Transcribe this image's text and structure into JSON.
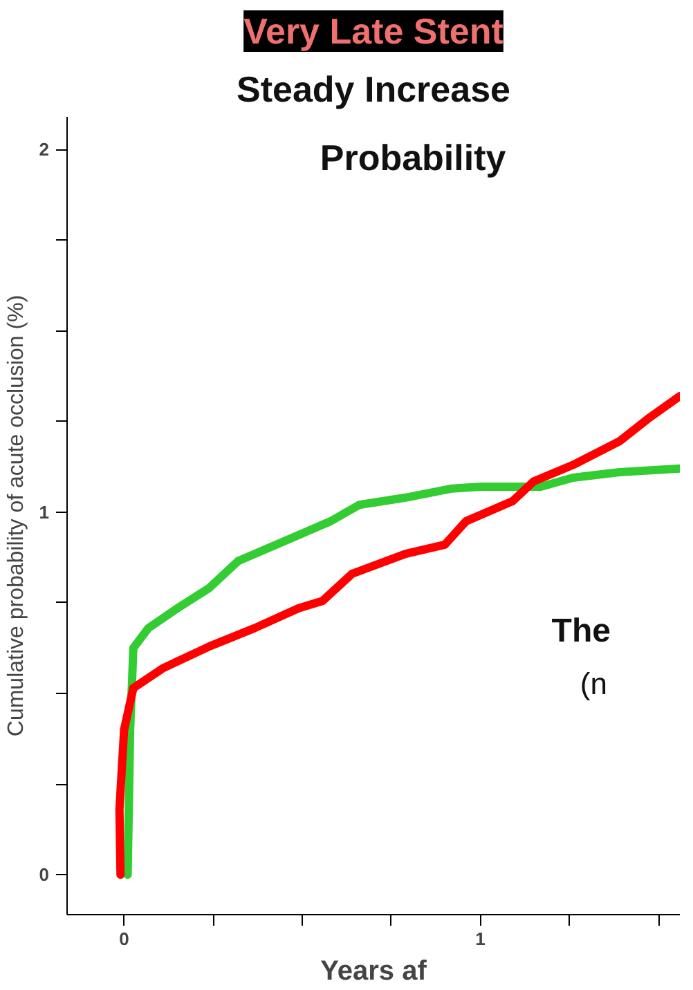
{
  "chart_data": {
    "type": "line",
    "title": "Very Late Stent",
    "subtitle": "Steady Increase",
    "annotations": [
      "Probability",
      "The",
      "(n"
    ],
    "xlabel": "Years af",
    "ylabel": "Cumulative probability of acute occlusion (%)",
    "xlim": [
      -0.16,
      1.56
    ],
    "ylim": [
      -0.11,
      2.09
    ],
    "xticks": [
      0,
      {
        "value": 0.25,
        "label": null
      },
      {
        "value": 0.5,
        "label": null
      },
      {
        "value": 0.75,
        "label": null
      },
      1,
      {
        "value": 1.25,
        "label": null
      },
      {
        "value": 1.5,
        "label": null
      }
    ],
    "yticks": [
      0,
      {
        "value": 0.25,
        "label": null
      },
      {
        "value": 0.5,
        "label": null
      },
      {
        "value": 0.75,
        "label": null
      },
      1,
      {
        "value": 1.25,
        "label": null
      },
      {
        "value": 1.5,
        "label": null
      },
      {
        "value": 1.75,
        "label": null
      },
      2
    ],
    "grid": false,
    "marker": "none",
    "line_style": "solid",
    "series": [
      {
        "color": "#33cc33",
        "x": [
          0.01,
          0.017,
          0.026,
          0.068,
          0.15,
          0.238,
          0.32,
          0.45,
          0.58,
          0.66,
          0.79,
          0.92,
          1.0,
          1.17,
          1.26,
          1.39,
          1.56
        ],
        "values": [
          0,
          0.4,
          0.625,
          0.68,
          0.735,
          0.79,
          0.865,
          0.92,
          0.975,
          1.02,
          1.04,
          1.065,
          1.07,
          1.07,
          1.095,
          1.11,
          1.12
        ]
      },
      {
        "color": "#ff0000",
        "x": [
          -0.01,
          -0.013,
          0.0,
          0.026,
          0.11,
          0.24,
          0.366,
          0.49,
          0.557,
          0.64,
          0.79,
          0.9,
          0.96,
          1.09,
          1.15,
          1.26,
          1.39,
          1.47,
          1.56
        ],
        "values": [
          0,
          0.18,
          0.4,
          0.515,
          0.57,
          0.63,
          0.68,
          0.735,
          0.755,
          0.83,
          0.885,
          0.91,
          0.975,
          1.03,
          1.085,
          1.13,
          1.195,
          1.257,
          1.32
        ]
      }
    ]
  }
}
